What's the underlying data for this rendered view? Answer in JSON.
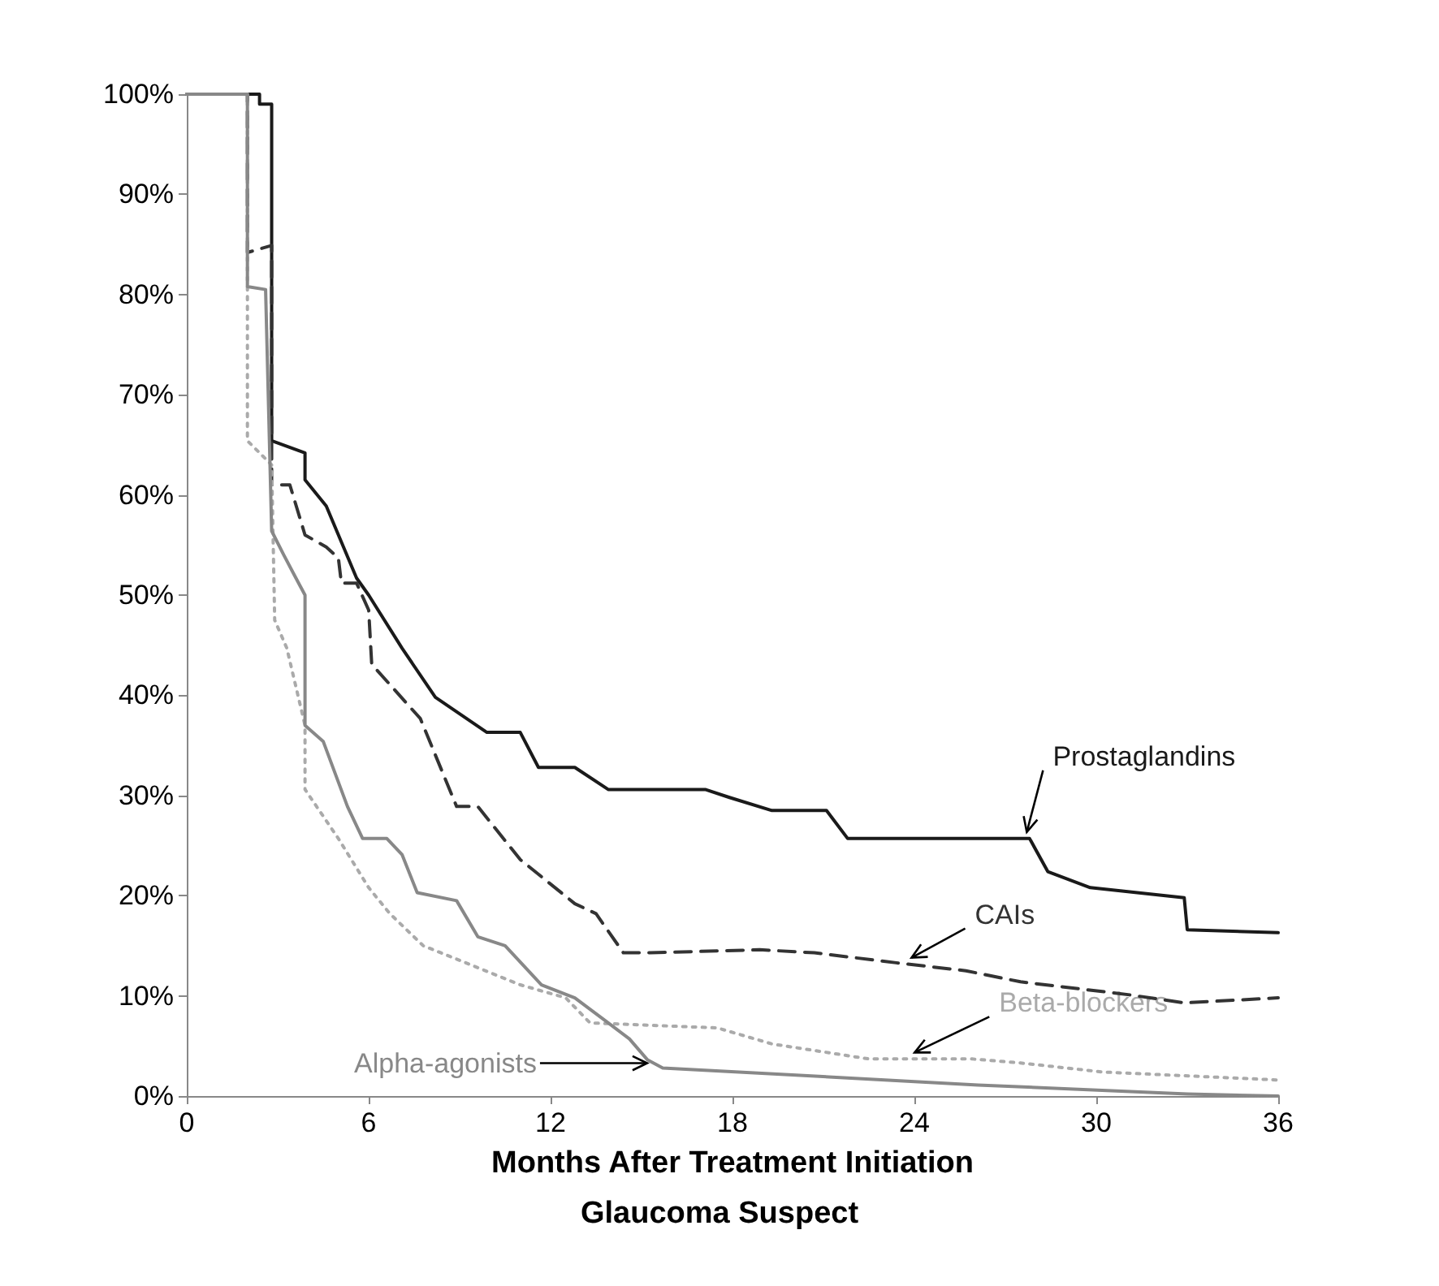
{
  "chart_data": {
    "type": "line",
    "xlabel": "Months After Treatment Initiation",
    "subtitle": "Glaucoma Suspect",
    "xlim": [
      0,
      36
    ],
    "xticks": [
      0,
      6,
      12,
      18,
      24,
      30,
      36
    ],
    "ylim": [
      0,
      100
    ],
    "yticks": [
      {
        "value": 0,
        "label": "0%"
      },
      {
        "value": 10,
        "label": "10%"
      },
      {
        "value": 20,
        "label": "20%"
      },
      {
        "value": 30,
        "label": "30%"
      },
      {
        "value": 40,
        "label": "40%"
      },
      {
        "value": 50,
        "label": "50%"
      },
      {
        "value": 60,
        "label": "60%"
      },
      {
        "value": 70,
        "label": "70%"
      },
      {
        "value": 80,
        "label": "80%"
      },
      {
        "value": 90,
        "label": "90%"
      },
      {
        "value": 100,
        "label": "100%"
      }
    ],
    "grid": false,
    "legend": false,
    "marker": "none",
    "series": [
      {
        "name": "Prostaglandins",
        "color": "#1a1a1a",
        "line_style": "solid",
        "x": [
          0,
          2.4,
          2.4,
          2.8,
          2.8,
          3.9,
          3.9,
          4.6,
          5.6,
          6,
          7.1,
          8.2,
          9.9,
          11.0,
          11.6,
          12.8,
          13.9,
          17.1,
          17.9,
          19.3,
          21.1,
          21.8,
          27.8,
          28.4,
          29.8,
          32.9,
          33.0,
          36
        ],
        "values": [
          100,
          100,
          99,
          99,
          65.4,
          64.2,
          61.5,
          58.9,
          51.7,
          50,
          44.7,
          39.8,
          36.3,
          36.3,
          32.8,
          32.8,
          30.6,
          30.6,
          29.8,
          28.5,
          28.5,
          25.7,
          25.7,
          22.4,
          20.8,
          19.8,
          16.6,
          16.3
        ]
      },
      {
        "name": "CAIs",
        "color": "#333333",
        "line_style": "dashed",
        "x": [
          0,
          2,
          2,
          2.8,
          2.8,
          3.4,
          3.9,
          4.6,
          5,
          5.1,
          5.6,
          6,
          6.1,
          7.4,
          7.7,
          8.9,
          9.6,
          11.0,
          12.8,
          13.5,
          14.4,
          15.3,
          18.9,
          20.7,
          23.4,
          25.7,
          27.5,
          31.1,
          32.9,
          36
        ],
        "values": [
          100,
          100,
          84.2,
          84.9,
          61,
          61,
          56,
          54.8,
          53.7,
          51.2,
          51.2,
          48.5,
          43.1,
          38.7,
          37.7,
          28.9,
          28.9,
          23.6,
          19.2,
          18.2,
          14.3,
          14.3,
          14.6,
          14.3,
          13.3,
          12.5,
          11.4,
          10.1,
          9.3,
          9.8
        ]
      },
      {
        "name": "Beta-blockers",
        "color": "#aaaaaa",
        "line_style": "dotted",
        "x": [
          0,
          2,
          2,
          2.8,
          2.9,
          3.3,
          3.9,
          3.9,
          5,
          6,
          6.7,
          7.8,
          9.2,
          11,
          12.5,
          13.3,
          17.5,
          19.3,
          22.5,
          25.9,
          27.5,
          30.2,
          36
        ],
        "values": [
          100,
          100,
          65.4,
          63,
          47.5,
          44.7,
          37,
          30.6,
          25.7,
          20.8,
          18.2,
          15,
          13.3,
          11.1,
          9.8,
          7.3,
          6.8,
          5.2,
          3.7,
          3.7,
          3.3,
          2.4,
          1.6
        ]
      },
      {
        "name": "Alpha-agonists",
        "color": "#888888",
        "line_style": "solid",
        "x": [
          0,
          2,
          2,
          2.6,
          2.8,
          3.2,
          3.6,
          3.9,
          3.9,
          4.5,
          5.3,
          5.8,
          6.6,
          7.1,
          7.6,
          8.9,
          9.6,
          10.5,
          11.7,
          12.8,
          13.9,
          14.6,
          15.2,
          15.7,
          26.1,
          33,
          36
        ],
        "values": [
          100,
          100,
          80.8,
          80.5,
          56.4,
          54,
          51.7,
          50,
          37,
          35.4,
          28.9,
          25.7,
          25.7,
          24.1,
          20.3,
          19.5,
          15.9,
          15,
          11.1,
          9.8,
          7.3,
          5.7,
          3.6,
          2.8,
          1.1,
          0.2,
          0
        ]
      }
    ]
  }
}
